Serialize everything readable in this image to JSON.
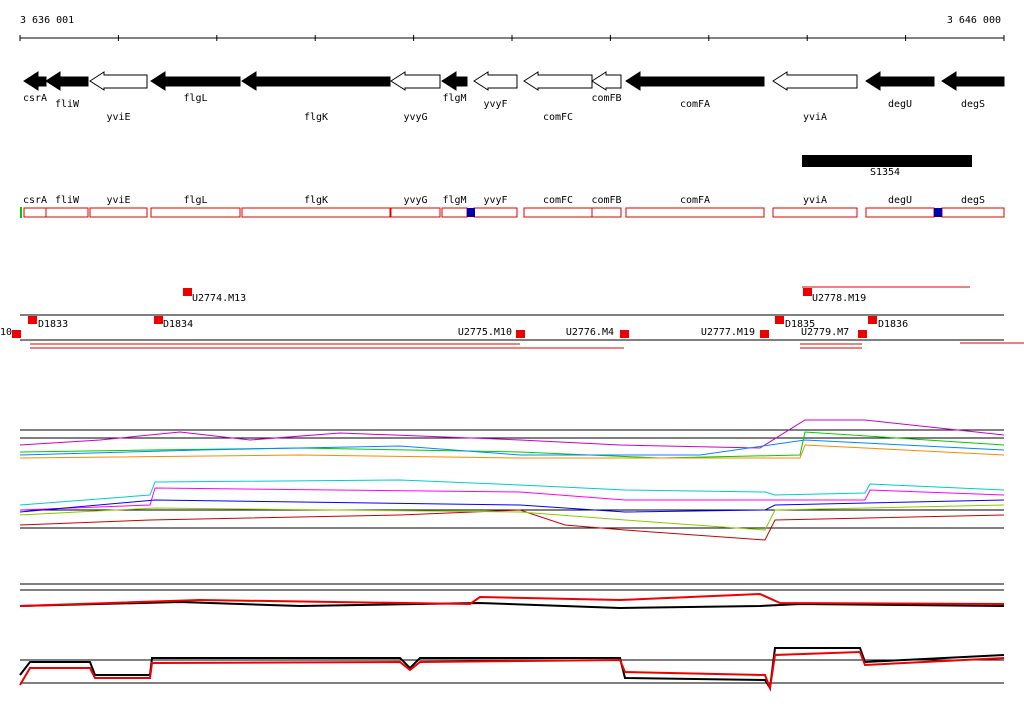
{
  "ruler": {
    "start": "3 636 001",
    "end": "3 646 000"
  },
  "genes": [
    {
      "label": "csrA"
    },
    {
      "label": "fliW"
    },
    {
      "label": "yviE"
    },
    {
      "label": "flgL"
    },
    {
      "label": "flgK"
    },
    {
      "label": "yvyG"
    },
    {
      "label": "flgM"
    },
    {
      "label": "yvyF"
    },
    {
      "label": "comFC"
    },
    {
      "label": "comFB"
    },
    {
      "label": "comFA"
    },
    {
      "label": "yviA"
    },
    {
      "label": "degU"
    },
    {
      "label": "degS"
    }
  ],
  "segment": "S1354",
  "features": [
    "10",
    "D1833",
    "U2774.M13",
    "D1834",
    "U2775.M10",
    "U2776.M4",
    "U2777.M19",
    "D1835",
    "U2778.M19",
    "U2779.M7",
    "D1836"
  ]
}
